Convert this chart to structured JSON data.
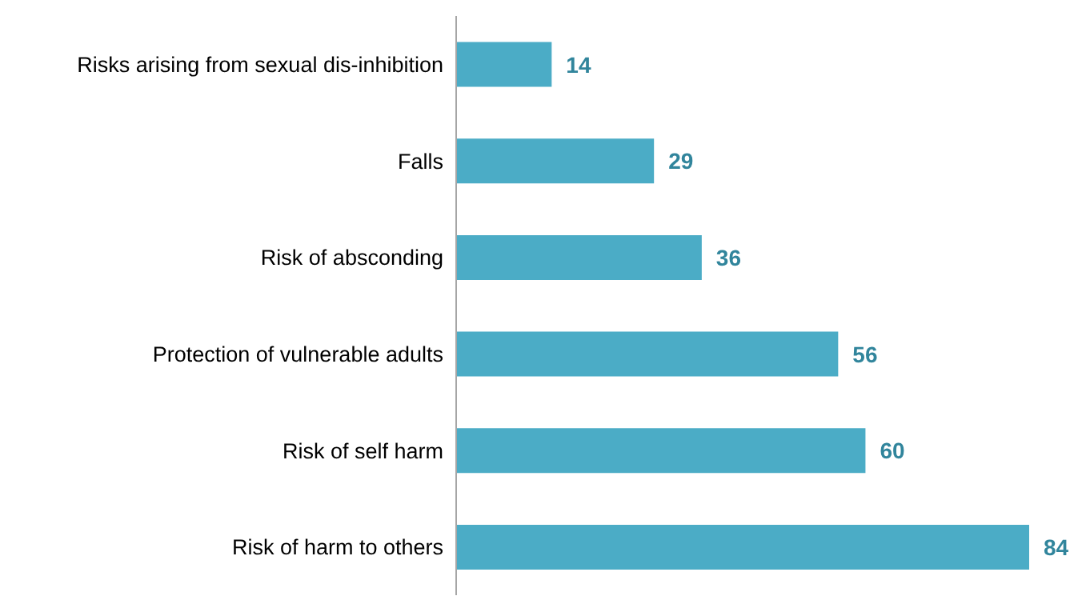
{
  "chart_data": {
    "type": "bar",
    "orientation": "horizontal",
    "categories": [
      "Risks arising from sexual dis-inhibition",
      "Falls",
      "Risk of absconding",
      "Protection of vulnerable adults",
      "Risk of self harm",
      "Risk of harm to others"
    ],
    "values": [
      14,
      29,
      36,
      56,
      60,
      84
    ],
    "color": "#4bacc6",
    "data_labels": true
  }
}
